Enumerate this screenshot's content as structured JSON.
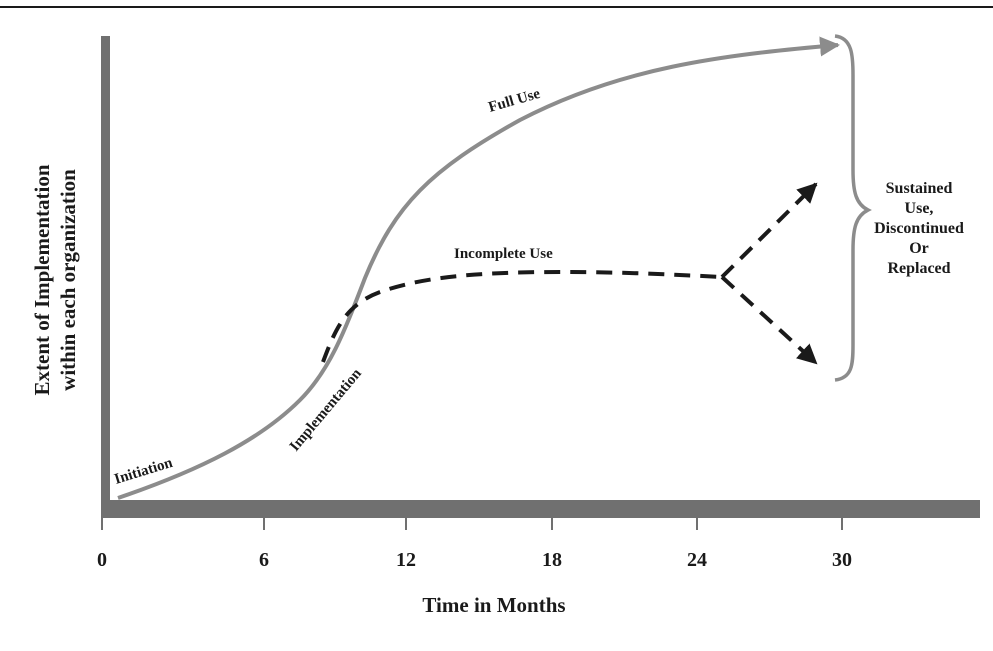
{
  "x_axis": {
    "title": "Time in Months",
    "ticks": [
      "0",
      "6",
      "12",
      "18",
      "24",
      "30"
    ]
  },
  "y_axis": {
    "title_line1": "Extent of Implementation",
    "title_line2": "within each organization"
  },
  "phases": {
    "initiation": "Initiation",
    "implementation": "Implementation",
    "full_use": "Full Use",
    "incomplete_use": "Incomplete Use"
  },
  "outcome": {
    "line1": "Sustained",
    "line2": "Use,",
    "line3": "Discontinued",
    "line4": "Or",
    "line5": "Replaced"
  },
  "colors": {
    "axis": "#707070",
    "full_use_curve": "#8c8c8c",
    "dashed_curve": "#1a1a1a",
    "brace": "#8c8c8c",
    "text": "#1a1a1a"
  }
}
